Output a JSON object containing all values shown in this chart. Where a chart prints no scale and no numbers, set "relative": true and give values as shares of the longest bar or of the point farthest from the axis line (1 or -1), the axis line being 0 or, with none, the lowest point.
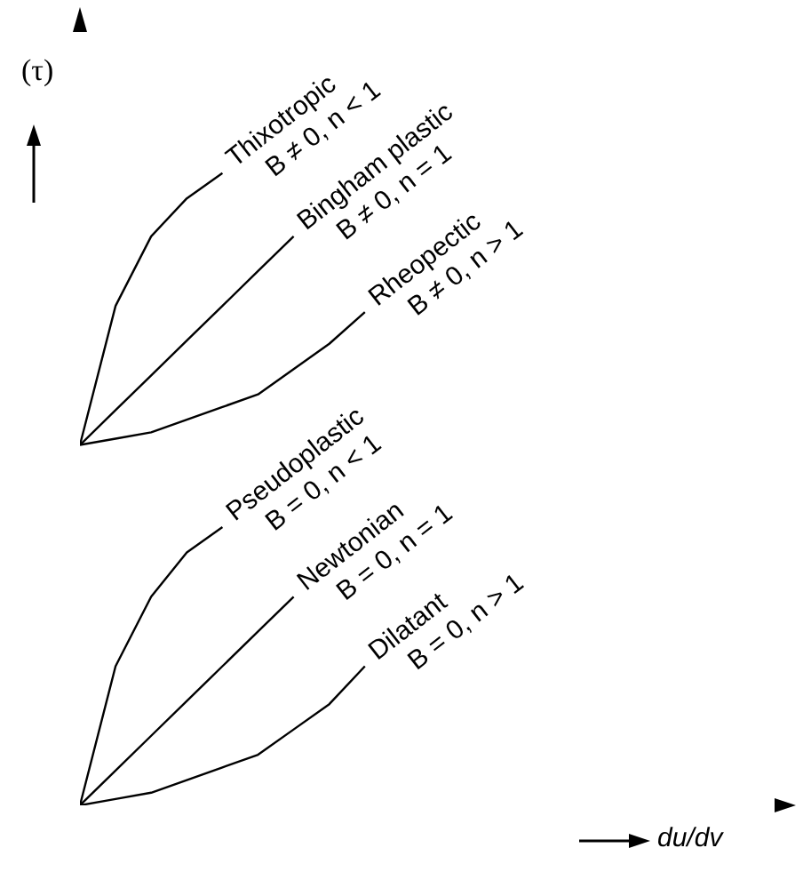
{
  "chart_data": {
    "type": "line",
    "relative": true,
    "xlabel": "du/dv",
    "ylabel": "(τ)",
    "marker": "none",
    "line_style": "solid",
    "categories": [
      null,
      null,
      null,
      null,
      null,
      null,
      null,
      null,
      null,
      null,
      null,
      null,
      null,
      null,
      null,
      null,
      null,
      null,
      null,
      null,
      null
    ],
    "series": [
      {
        "name": "Thixotropic",
        "color": "#000000",
        "values": [
          0.57,
          0.79,
          0.9,
          0.96,
          1.0,
          null,
          null,
          null,
          null,
          null,
          null,
          null,
          null,
          null,
          null,
          null,
          null,
          null,
          null,
          null,
          null
        ]
      },
      {
        "name": "Bingham plastic",
        "color": "#000000",
        "values": [
          0.57,
          0.625,
          0.68,
          0.735,
          0.79,
          0.845,
          0.9,
          null,
          null,
          null,
          null,
          null,
          null,
          null,
          null,
          null,
          null,
          null,
          null,
          null,
          null
        ]
      },
      {
        "name": "Rheopectic",
        "color": "#000000",
        "values": [
          0.57,
          0.58,
          0.59,
          0.61,
          0.63,
          0.65,
          0.69,
          0.73,
          0.78,
          null,
          null,
          null,
          null,
          null,
          null,
          null,
          null,
          null,
          null,
          null,
          null
        ]
      },
      {
        "name": "Pseudoplastic",
        "color": "#000000",
        "values": [
          0,
          0.22,
          0.33,
          0.4,
          0.44,
          null,
          null,
          null,
          null,
          null,
          null,
          null,
          null,
          null,
          null,
          null,
          null,
          null,
          null,
          null,
          null
        ]
      },
      {
        "name": "Newtonian",
        "color": "#000000",
        "values": [
          0,
          0.055,
          0.11,
          0.165,
          0.22,
          0.275,
          0.33,
          null,
          null,
          null,
          null,
          null,
          null,
          null,
          null,
          null,
          null,
          null,
          null,
          null,
          null
        ]
      },
      {
        "name": "Dilatant",
        "color": "#000000",
        "values": [
          0,
          0.01,
          0.02,
          0.04,
          0.06,
          0.08,
          0.12,
          0.16,
          0.22,
          null,
          null,
          null,
          null,
          null,
          null,
          null,
          null,
          null,
          null,
          null,
          null
        ]
      }
    ],
    "annotations": [
      "B ≠ 0, n < 1",
      "B ≠ 0, n = 1",
      "B ≠ 0, n > 1",
      "B = 0, n < 1",
      "B = 0, n = 1",
      "B = 0, n > 1"
    ]
  }
}
